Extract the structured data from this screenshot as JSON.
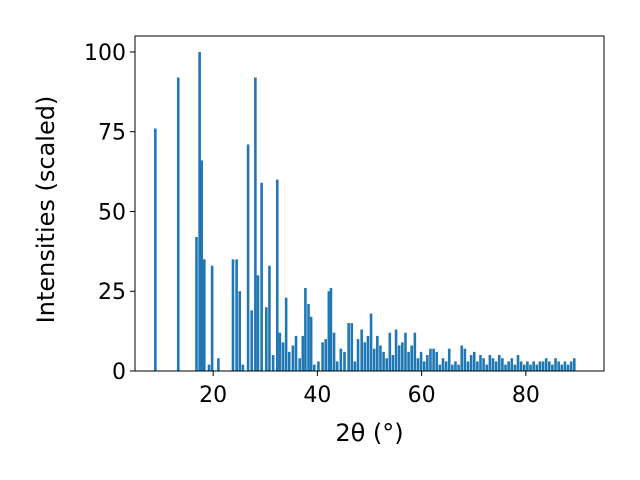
{
  "chart_data": {
    "type": "bar",
    "title": "",
    "xlabel": "2θ (°)",
    "ylabel": "Intensities (scaled)",
    "xlim": [
      5,
      95
    ],
    "ylim": [
      0,
      105
    ],
    "xticks": [
      20,
      40,
      60,
      80
    ],
    "yticks": [
      0,
      25,
      50,
      75,
      100
    ],
    "grid": false,
    "bar_color": "#1f77b4",
    "points": [
      {
        "x": 8.9,
        "y": 76
      },
      {
        "x": 13.3,
        "y": 92
      },
      {
        "x": 16.8,
        "y": 42
      },
      {
        "x": 17.4,
        "y": 100
      },
      {
        "x": 17.8,
        "y": 66
      },
      {
        "x": 18.3,
        "y": 35
      },
      {
        "x": 19.2,
        "y": 2
      },
      {
        "x": 19.8,
        "y": 33
      },
      {
        "x": 21.0,
        "y": 4
      },
      {
        "x": 23.8,
        "y": 35
      },
      {
        "x": 24.5,
        "y": 35
      },
      {
        "x": 25.1,
        "y": 25
      },
      {
        "x": 25.7,
        "y": 2
      },
      {
        "x": 26.7,
        "y": 71
      },
      {
        "x": 27.4,
        "y": 19
      },
      {
        "x": 28.1,
        "y": 92
      },
      {
        "x": 28.6,
        "y": 30
      },
      {
        "x": 29.3,
        "y": 59
      },
      {
        "x": 30.2,
        "y": 20
      },
      {
        "x": 30.8,
        "y": 33
      },
      {
        "x": 31.5,
        "y": 5
      },
      {
        "x": 32.3,
        "y": 60
      },
      {
        "x": 32.8,
        "y": 12
      },
      {
        "x": 33.4,
        "y": 9
      },
      {
        "x": 34.0,
        "y": 23
      },
      {
        "x": 34.6,
        "y": 6
      },
      {
        "x": 35.3,
        "y": 8
      },
      {
        "x": 35.9,
        "y": 11
      },
      {
        "x": 36.6,
        "y": 4
      },
      {
        "x": 37.2,
        "y": 11
      },
      {
        "x": 37.7,
        "y": 26
      },
      {
        "x": 38.3,
        "y": 21
      },
      {
        "x": 38.8,
        "y": 17
      },
      {
        "x": 39.4,
        "y": 2
      },
      {
        "x": 40.2,
        "y": 3
      },
      {
        "x": 41.0,
        "y": 9
      },
      {
        "x": 41.6,
        "y": 10
      },
      {
        "x": 42.2,
        "y": 25
      },
      {
        "x": 42.6,
        "y": 26
      },
      {
        "x": 43.2,
        "y": 12
      },
      {
        "x": 43.8,
        "y": 3
      },
      {
        "x": 44.5,
        "y": 7
      },
      {
        "x": 45.2,
        "y": 6
      },
      {
        "x": 46.0,
        "y": 15
      },
      {
        "x": 46.6,
        "y": 15
      },
      {
        "x": 47.2,
        "y": 3
      },
      {
        "x": 47.8,
        "y": 10
      },
      {
        "x": 48.5,
        "y": 13
      },
      {
        "x": 49.1,
        "y": 9
      },
      {
        "x": 49.7,
        "y": 11
      },
      {
        "x": 50.3,
        "y": 18
      },
      {
        "x": 50.9,
        "y": 7
      },
      {
        "x": 51.5,
        "y": 11
      },
      {
        "x": 52.1,
        "y": 8
      },
      {
        "x": 52.7,
        "y": 6
      },
      {
        "x": 53.3,
        "y": 4
      },
      {
        "x": 53.9,
        "y": 12
      },
      {
        "x": 54.5,
        "y": 5
      },
      {
        "x": 55.1,
        "y": 13
      },
      {
        "x": 55.7,
        "y": 8
      },
      {
        "x": 56.3,
        "y": 9
      },
      {
        "x": 56.9,
        "y": 12
      },
      {
        "x": 57.5,
        "y": 6
      },
      {
        "x": 58.1,
        "y": 8
      },
      {
        "x": 58.7,
        "y": 12
      },
      {
        "x": 59.3,
        "y": 4
      },
      {
        "x": 59.9,
        "y": 6
      },
      {
        "x": 60.5,
        "y": 3
      },
      {
        "x": 61.1,
        "y": 5
      },
      {
        "x": 61.7,
        "y": 7
      },
      {
        "x": 62.3,
        "y": 7
      },
      {
        "x": 62.9,
        "y": 6
      },
      {
        "x": 63.5,
        "y": 2
      },
      {
        "x": 64.1,
        "y": 4
      },
      {
        "x": 64.7,
        "y": 3
      },
      {
        "x": 65.3,
        "y": 7
      },
      {
        "x": 65.9,
        "y": 2
      },
      {
        "x": 66.5,
        "y": 3
      },
      {
        "x": 67.1,
        "y": 2
      },
      {
        "x": 67.7,
        "y": 8
      },
      {
        "x": 68.3,
        "y": 7
      },
      {
        "x": 68.9,
        "y": 3
      },
      {
        "x": 69.5,
        "y": 5
      },
      {
        "x": 70.1,
        "y": 6
      },
      {
        "x": 70.7,
        "y": 3
      },
      {
        "x": 71.3,
        "y": 5
      },
      {
        "x": 71.9,
        "y": 4
      },
      {
        "x": 72.5,
        "y": 2
      },
      {
        "x": 73.1,
        "y": 5
      },
      {
        "x": 73.7,
        "y": 4
      },
      {
        "x": 74.3,
        "y": 3
      },
      {
        "x": 74.9,
        "y": 5
      },
      {
        "x": 75.5,
        "y": 4
      },
      {
        "x": 76.1,
        "y": 2
      },
      {
        "x": 76.7,
        "y": 3
      },
      {
        "x": 77.3,
        "y": 4
      },
      {
        "x": 77.9,
        "y": 2
      },
      {
        "x": 78.5,
        "y": 5
      },
      {
        "x": 79.1,
        "y": 3
      },
      {
        "x": 79.7,
        "y": 2
      },
      {
        "x": 80.3,
        "y": 3
      },
      {
        "x": 80.9,
        "y": 2
      },
      {
        "x": 81.5,
        "y": 3
      },
      {
        "x": 82.1,
        "y": 2
      },
      {
        "x": 82.7,
        "y": 3
      },
      {
        "x": 83.3,
        "y": 3
      },
      {
        "x": 83.9,
        "y": 4
      },
      {
        "x": 84.5,
        "y": 3
      },
      {
        "x": 85.1,
        "y": 2
      },
      {
        "x": 85.7,
        "y": 4
      },
      {
        "x": 86.3,
        "y": 3
      },
      {
        "x": 86.9,
        "y": 2
      },
      {
        "x": 87.5,
        "y": 3
      },
      {
        "x": 88.1,
        "y": 2
      },
      {
        "x": 88.7,
        "y": 3
      },
      {
        "x": 89.3,
        "y": 4
      }
    ]
  }
}
